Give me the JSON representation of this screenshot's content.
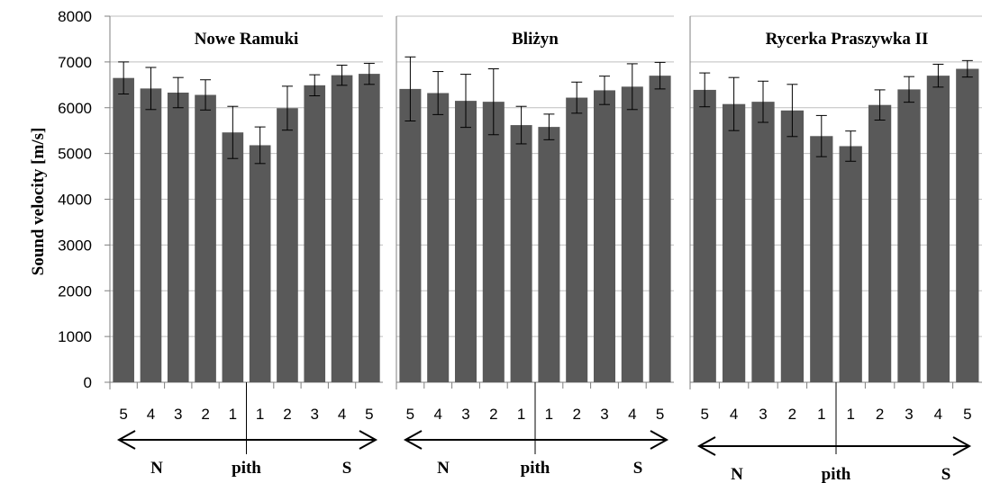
{
  "chart_data": {
    "type": "bar",
    "ylabel": "Sound velocity [m/s]",
    "ylim": [
      0,
      8000
    ],
    "yticks": [
      "0",
      "1000",
      "2000",
      "3000",
      "4000",
      "5000",
      "6000",
      "7000",
      "8000"
    ],
    "grid": true,
    "bar_color": "#595959",
    "panels": [
      {
        "title": "Nowe Ramuki",
        "categories": [
          "5",
          "4",
          "3",
          "2",
          "1",
          "1",
          "2",
          "3",
          "4",
          "5"
        ],
        "values": [
          6650,
          6420,
          6330,
          6280,
          5460,
          5180,
          5990,
          6490,
          6710,
          6740
        ],
        "errors": [
          350,
          460,
          330,
          330,
          570,
          400,
          480,
          230,
          220,
          230
        ],
        "annotations": {
          "left": "N",
          "center": "pith",
          "right": "S"
        }
      },
      {
        "title": "Bliżyn",
        "categories": [
          "5",
          "4",
          "3",
          "2",
          "1",
          "1",
          "2",
          "3",
          "4",
          "5"
        ],
        "values": [
          6410,
          6320,
          6150,
          6130,
          5620,
          5580,
          6220,
          6380,
          6460,
          6700
        ],
        "errors": [
          700,
          470,
          580,
          720,
          410,
          280,
          340,
          310,
          500,
          290
        ],
        "annotations": {
          "left": "N",
          "center": "pith",
          "right": "S"
        }
      },
      {
        "title": "Rycerka Praszywka II",
        "categories": [
          "5",
          "4",
          "3",
          "2",
          "1",
          "1",
          "2",
          "3",
          "4",
          "5"
        ],
        "values": [
          6390,
          6080,
          6130,
          5940,
          5380,
          5160,
          6060,
          6400,
          6700,
          6850
        ],
        "errors": [
          370,
          580,
          450,
          570,
          450,
          330,
          330,
          280,
          250,
          180
        ],
        "annotations": {
          "left": "N",
          "center": "pith",
          "right": "S"
        }
      }
    ]
  }
}
